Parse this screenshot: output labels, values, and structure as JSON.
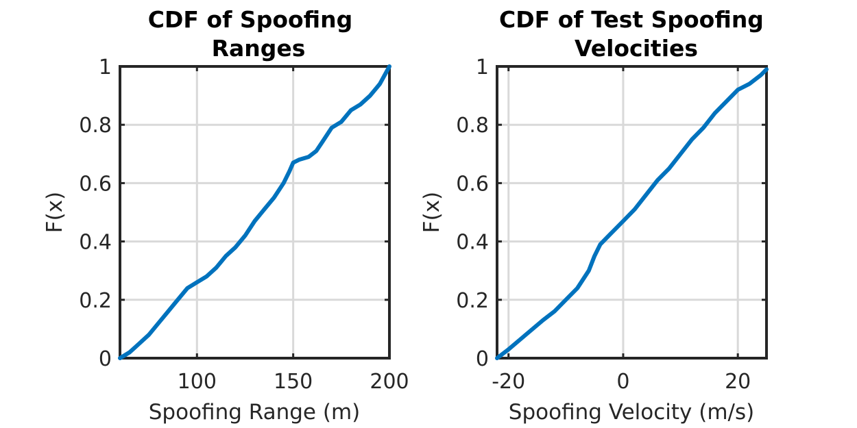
{
  "colors": {
    "series": "#0072bd",
    "axis": "#262626",
    "grid": "#d9d9d9"
  },
  "chart_data": [
    {
      "type": "line",
      "title": [
        "CDF of Spoofing",
        "Ranges"
      ],
      "xlabel": "Spoofing Range (m)",
      "ylabel": "F(x)",
      "xlim": [
        60,
        200
      ],
      "ylim": [
        0,
        1
      ],
      "xticks": [
        100,
        150,
        200
      ],
      "xtick_labels": [
        "100",
        "150",
        "200"
      ],
      "yticks": [
        0,
        0.2,
        0.4,
        0.6,
        0.8,
        1
      ],
      "ytick_labels": [
        "0",
        "0.2",
        "0.4",
        "0.6",
        "0.8",
        "1"
      ],
      "grid": true,
      "series": [
        {
          "name": "CDF",
          "x": [
            60,
            65,
            70,
            75,
            80,
            85,
            90,
            95,
            100,
            105,
            110,
            115,
            120,
            125,
            130,
            135,
            140,
            145,
            148,
            150,
            153,
            158,
            162,
            165,
            170,
            175,
            180,
            185,
            190,
            195,
            200
          ],
          "y": [
            0,
            0.02,
            0.05,
            0.08,
            0.12,
            0.16,
            0.2,
            0.24,
            0.26,
            0.28,
            0.31,
            0.35,
            0.38,
            0.42,
            0.47,
            0.51,
            0.55,
            0.6,
            0.64,
            0.67,
            0.68,
            0.69,
            0.71,
            0.74,
            0.79,
            0.81,
            0.85,
            0.87,
            0.9,
            0.94,
            1
          ]
        }
      ]
    },
    {
      "type": "line",
      "title": [
        "CDF of Test Spoofing",
        "Velocities"
      ],
      "xlabel": "Spoofing Velocity (m/s)",
      "ylabel": "F(x)",
      "xlim": [
        -22,
        25
      ],
      "ylim": [
        0,
        1
      ],
      "xticks": [
        -20,
        0,
        20
      ],
      "xtick_labels": [
        "-20",
        "0",
        "20"
      ],
      "yticks": [
        0,
        0.2,
        0.4,
        0.6,
        0.8,
        1
      ],
      "ytick_labels": [
        "0",
        "0.2",
        "0.4",
        "0.6",
        "0.8",
        "1"
      ],
      "grid": true,
      "series": [
        {
          "name": "CDF",
          "x": [
            -22,
            -20,
            -17,
            -14,
            -12,
            -10,
            -8,
            -6,
            -5,
            -4,
            -2,
            0,
            2,
            4,
            6,
            8,
            10,
            12,
            14,
            16,
            18,
            20,
            22,
            24,
            25
          ],
          "y": [
            0,
            0.03,
            0.08,
            0.13,
            0.16,
            0.2,
            0.24,
            0.3,
            0.35,
            0.39,
            0.43,
            0.47,
            0.51,
            0.56,
            0.61,
            0.65,
            0.7,
            0.75,
            0.79,
            0.84,
            0.88,
            0.92,
            0.94,
            0.97,
            0.99
          ]
        }
      ]
    }
  ]
}
